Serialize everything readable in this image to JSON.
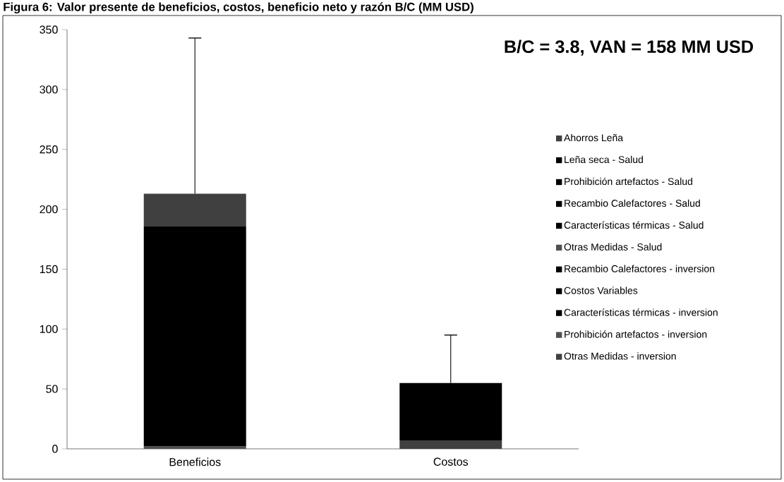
{
  "chart_data": {
    "type": "bar",
    "stacked": true,
    "title": "Figura 6: Valor presente de beneficios, costos, beneficio neto y razón B/C (MM USD)",
    "categories": [
      "Beneficios",
      "Costos"
    ],
    "ylim": [
      0,
      350
    ],
    "yticks": [
      0,
      50,
      100,
      150,
      200,
      250,
      300,
      350
    ],
    "legend": "right",
    "annotations": [
      "B/C = 3.8, VAN = 158 MM USD"
    ],
    "series": [
      {
        "name": "Otras Medidas - inversion",
        "color": "#404040",
        "values": [
          null,
          7
        ]
      },
      {
        "name": "Prohibición artefactos - inversion",
        "color": "#505050",
        "values": [
          null,
          null
        ]
      },
      {
        "name": "Características térmicas - inversion",
        "color": "#000000",
        "values": [
          null,
          null
        ]
      },
      {
        "name": "Costos Variables",
        "color": "#000000",
        "values": [
          null,
          null
        ]
      },
      {
        "name": "Recambio Calefactores - inversion",
        "color": "#000000",
        "values": [
          null,
          48
        ],
        "errors": [
          null,
          [
            55,
            95
          ]
        ]
      },
      {
        "name": "Otras Medidas - Salud",
        "color": "#505050",
        "values": [
          2,
          null
        ]
      },
      {
        "name": "Características térmicas - Salud",
        "color": "#000000",
        "values": [
          null,
          null
        ]
      },
      {
        "name": "Recambio Calefactores - Salud",
        "color": "#000000",
        "values": [
          184,
          null
        ]
      },
      {
        "name": "Prohibición artefactos - Salud",
        "color": "#000000",
        "values": [
          null,
          null
        ]
      },
      {
        "name": "Leña seca - Salud",
        "color": "#000000",
        "values": [
          null,
          null
        ]
      },
      {
        "name": "Ahorros Leña",
        "color": "#404040",
        "values": [
          27,
          null
        ],
        "errors": [
          [
            213,
            343
          ],
          null
        ]
      }
    ]
  }
}
